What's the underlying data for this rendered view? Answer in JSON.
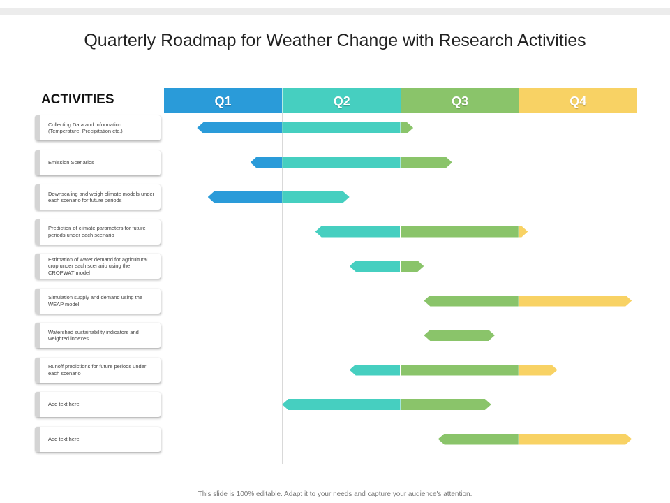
{
  "title": "Quarterly Roadmap for Weather Change with Research Activities",
  "activities_heading": "ACTIVITIES",
  "footer": "This slide is 100% editable. Adapt it to your needs and capture your audience's attention.",
  "colors": {
    "q1": "#2a9bd9",
    "q2": "#46cfc0",
    "q3": "#8ac46a",
    "q4": "#f8d264"
  },
  "quarters": [
    {
      "label": "Q1",
      "color": "#2a9bd9"
    },
    {
      "label": "Q2",
      "color": "#46cfc0"
    },
    {
      "label": "Q3",
      "color": "#8ac46a"
    },
    {
      "label": "Q4",
      "color": "#f8d264"
    }
  ],
  "activities": [
    {
      "label": "Collecting Data and Information (Temperature, Precipitation etc.)",
      "start": 0.28,
      "end": 2.11
    },
    {
      "label": "Emission Scenarios",
      "start": 0.73,
      "end": 2.44
    },
    {
      "label": "Downscaling and weigh climate models under each scenario for future periods",
      "start": 0.37,
      "end": 1.57
    },
    {
      "label": "Prediction of climate parameters for future periods under each scenario",
      "start": 1.28,
      "end": 3.08
    },
    {
      "label": "Estimation of water demand for agricultural crop under each scenario using the CROPWAT model",
      "start": 1.57,
      "end": 2.2
    },
    {
      "label": "Simulation supply and demand using the WEAP model",
      "start": 2.2,
      "end": 3.96
    },
    {
      "label": "Watershed sustainability indicators and weighted indexes",
      "start": 2.2,
      "end": 2.8
    },
    {
      "label": "Runoff predictions for future periods under each scenario",
      "start": 1.57,
      "end": 3.33
    },
    {
      "label": "Add text here",
      "start": 1.0,
      "end": 2.77
    },
    {
      "label": "Add text here",
      "start": 2.32,
      "end": 3.96
    }
  ]
}
